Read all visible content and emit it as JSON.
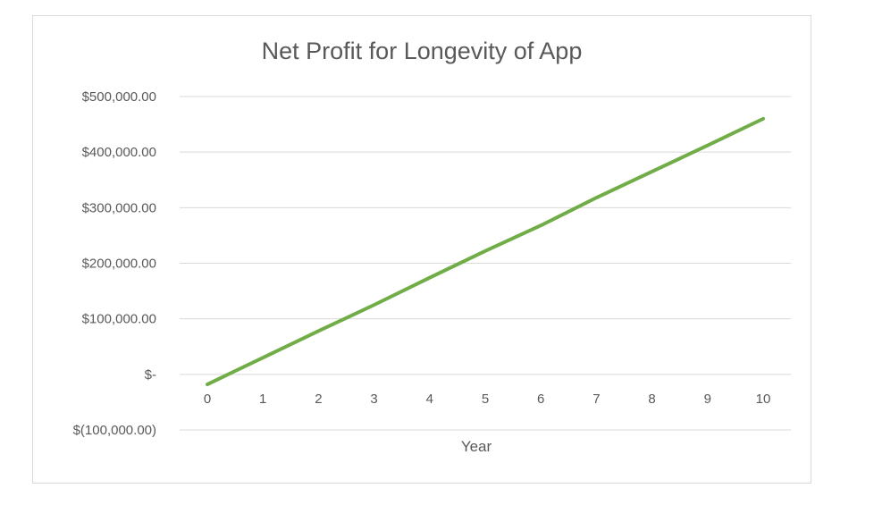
{
  "chart_data": {
    "type": "line",
    "title": "Net Profit for Longevity of App",
    "xlabel": "Year",
    "ylabel": "",
    "x": [
      0,
      1,
      2,
      3,
      4,
      5,
      6,
      7,
      8,
      9,
      10
    ],
    "x_tick_labels": [
      "0",
      "1",
      "2",
      "3",
      "4",
      "5",
      "6",
      "7",
      "8",
      "9",
      "10"
    ],
    "y_ticks": [
      500000,
      400000,
      300000,
      200000,
      100000,
      0,
      -100000
    ],
    "y_tick_labels": [
      "$500,000.00",
      "$400,000.00",
      "$300,000.00",
      "$200,000.00",
      "$100,000.00",
      "$-",
      "$(100,000.00)"
    ],
    "ylim": [
      -100000,
      500000
    ],
    "grid": true,
    "legend": "none",
    "series": [
      {
        "color": "#70ad47",
        "values": [
          -18000,
          30000,
          78000,
          125000,
          174000,
          222000,
          268000,
          318000,
          365000,
          412000,
          460000
        ]
      }
    ]
  }
}
